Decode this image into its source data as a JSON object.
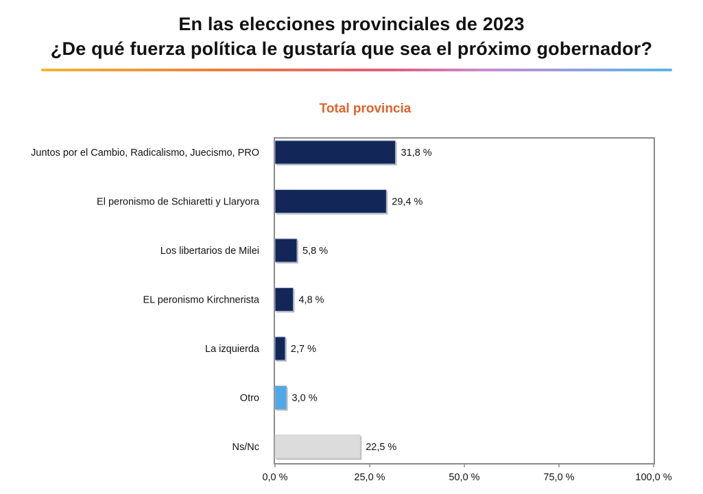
{
  "header": {
    "title_line1": "En las elecciones provinciales de 2023",
    "title_line2": "¿De qué fuerza política le gustaría que sea el próximo gobernador?"
  },
  "chart_data": {
    "type": "bar",
    "orientation": "horizontal",
    "title": "Total provincia",
    "categories": [
      "Juntos por el Cambio, Radicalismo, Juecismo, PRO",
      "El peronismo de Schiaretti y Llaryora",
      "Los libertarios de Milei",
      "EL peronismo Kirchnerista",
      "La izquierda",
      "Otro",
      "Ns/Nc"
    ],
    "values": [
      31.8,
      29.4,
      5.8,
      4.8,
      2.7,
      3.0,
      22.5
    ],
    "value_labels": [
      "31,8 %",
      "29,4 %",
      "5,8 %",
      "4,8 %",
      "2,7 %",
      "3,0 %",
      "22,5 %"
    ],
    "bar_colors": [
      "#132658",
      "#132658",
      "#132658",
      "#132658",
      "#132658",
      "#4fa8e8",
      "#dcdcdc"
    ],
    "xlim": [
      0,
      100
    ],
    "xticks": [
      "0,0 %",
      "25,0 %",
      "50,0 %",
      "75,0 %",
      "100,0 %"
    ],
    "xtick_values": [
      0,
      25,
      50,
      75,
      100
    ],
    "grid": false
  }
}
